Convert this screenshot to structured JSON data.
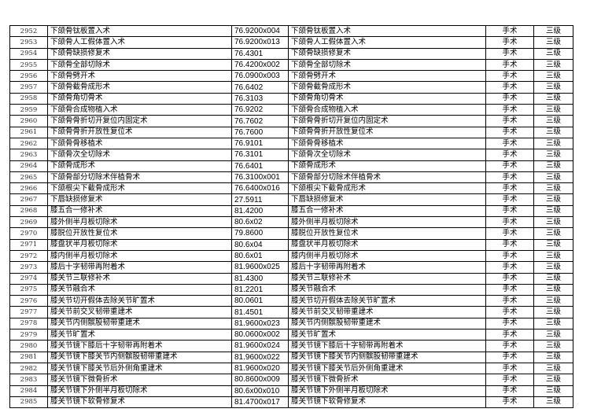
{
  "rows": [
    {
      "no": "2952",
      "name": "下颌骨钛板置入术",
      "code": "76.9200x004",
      "name2": "下颌骨钛板置入术",
      "type": "手术",
      "level": "三级"
    },
    {
      "no": "2953",
      "name": "下颌骨人工假体置入术",
      "code": "76.9200x013",
      "name2": "下颌骨人工假体置入术",
      "type": "手术",
      "level": "三级"
    },
    {
      "no": "2954",
      "name": "下颌骨缺损修复术",
      "code": "76.4301",
      "name2": "下颌骨缺损修复术",
      "type": "手术",
      "level": "三级"
    },
    {
      "no": "2955",
      "name": "下颌骨全部切除术",
      "code": "76.4200x002",
      "name2": "下颌骨全部切除术",
      "type": "手术",
      "level": "三级"
    },
    {
      "no": "2956",
      "name": "下颌骨劈开术",
      "code": "76.0900x003",
      "name2": "下颌骨劈开术",
      "type": "手术",
      "level": "三级"
    },
    {
      "no": "2957",
      "name": "下颌骨截骨成形术",
      "code": "76.6402",
      "name2": "下颌骨截骨成形术",
      "type": "手术",
      "level": "三级"
    },
    {
      "no": "2958",
      "name": "下颌骨角切骨术",
      "code": "76.3103",
      "name2": "下颌骨角切骨术",
      "type": "手术",
      "level": "三级"
    },
    {
      "no": "2959",
      "name": "下颌骨合成物植入术",
      "code": "76.9202",
      "name2": "下颌骨合成物植入术",
      "type": "手术",
      "level": "三级"
    },
    {
      "no": "2960",
      "name": "下颌骨骨折切开复位内固定术",
      "code": "76.7602",
      "name2": "下颌骨骨折切开复位内固定术",
      "type": "手术",
      "level": "三级"
    },
    {
      "no": "2961",
      "name": "下颌骨骨折开放性复位术",
      "code": "76.7600",
      "name2": "下颌骨骨折开放性复位术",
      "type": "手术",
      "level": "三级"
    },
    {
      "no": "2962",
      "name": "下颌骨骨移植术",
      "code": "76.9101",
      "name2": "下颌骨骨移植术",
      "type": "手术",
      "level": "三级"
    },
    {
      "no": "2963",
      "name": "下颌骨次全切除术",
      "code": "76.3101",
      "name2": "下颌骨次全切除术",
      "type": "手术",
      "level": "三级"
    },
    {
      "no": "2964",
      "name": "下颌骨成形术",
      "code": "76.6401",
      "name2": "下颌骨成形术",
      "type": "手术",
      "level": "三级"
    },
    {
      "no": "2965",
      "name": "下颌骨部分切除术伴植骨术",
      "code": "76.3100x001",
      "name2": "下颌骨部分切除术伴植骨术",
      "type": "手术",
      "level": "三级"
    },
    {
      "no": "2966",
      "name": "下颌根尖下截骨成形术",
      "code": "76.6400x016",
      "name2": "下颌根尖下截骨成形术",
      "type": "手术",
      "level": "三级"
    },
    {
      "no": "2967",
      "name": "下唇缺损修复术",
      "code": "27.5911",
      "name2": "下唇缺损修复术",
      "type": "手术",
      "level": "三级"
    },
    {
      "no": "2968",
      "name": "膝五合一修补术",
      "code": "81.4200",
      "name2": "膝五合一修补术",
      "type": "手术",
      "level": "三级"
    },
    {
      "no": "2969",
      "name": "膝外侧半月板切除术",
      "code": "80.6x02",
      "name2": "膝外侧半月板切除术",
      "type": "手术",
      "level": "三级"
    },
    {
      "no": "2970",
      "name": "膝脱位开放性复位术",
      "code": "79.8600",
      "name2": "膝脱位开放性复位术",
      "type": "手术",
      "level": "三级"
    },
    {
      "no": "2971",
      "name": "膝盘状半月板切除术",
      "code": "80.6x04",
      "name2": "膝盘状半月板切除术",
      "type": "手术",
      "level": "三级"
    },
    {
      "no": "2972",
      "name": "膝内侧半月板切除术",
      "code": "80.6x01",
      "name2": "膝内侧半月板切除术",
      "type": "手术",
      "level": "三级"
    },
    {
      "no": "2973",
      "name": "膝后十字韧带再附着术",
      "code": "81.9600x025",
      "name2": "膝后十字韧带再附着术",
      "type": "手术",
      "level": "三级"
    },
    {
      "no": "2974",
      "name": "膝关节三联修补术",
      "code": "81.4300",
      "name2": "膝关节三联修补术",
      "type": "手术",
      "level": "三级"
    },
    {
      "no": "2975",
      "name": "膝关节融合术",
      "code": "81.2201",
      "name2": "膝关节融合术",
      "type": "手术",
      "level": "三级"
    },
    {
      "no": "2976",
      "name": "膝关节切开假体去除关节旷置术",
      "code": "80.0601",
      "name2": "膝关节切开假体去除关节旷置术",
      "type": "手术",
      "level": "三级"
    },
    {
      "no": "2977",
      "name": "膝关节前交叉韧带重建术",
      "code": "81.4501",
      "name2": "膝关节前交叉韧带重建术",
      "type": "手术",
      "level": "三级"
    },
    {
      "no": "2978",
      "name": "膝关节内侧髌股韧带重建术",
      "code": "81.9600x023",
      "name2": "膝关节内侧髌股韧带重建术",
      "type": "手术",
      "level": "三级"
    },
    {
      "no": "2979",
      "name": "膝关节旷置术",
      "code": "80.0600x002",
      "name2": "膝关节旷置术",
      "type": "手术",
      "level": "三级"
    },
    {
      "no": "2980",
      "name": "膝关节镜下膝后十字韧带再附着术",
      "code": "81.9600x024",
      "name2": "膝关节镜下膝后十字韧带再附着术",
      "type": "手术",
      "level": "三级"
    },
    {
      "no": "2981",
      "name": "膝关节镜下膝关节内侧髌股韧带重建术",
      "code": "81.9600x022",
      "name2": "膝关节镜下膝关节内侧髌股韧带重建术",
      "type": "手术",
      "level": "三级"
    },
    {
      "no": "2982",
      "name": "膝关节镜下膝关节后外侧角重建术",
      "code": "81.9600x020",
      "name2": "膝关节镜下膝关节后外侧角重建术",
      "type": "手术",
      "level": "三级"
    },
    {
      "no": "2983",
      "name": "膝关节镜下微骨折术",
      "code": "80.8600x009",
      "name2": "膝关节镜下微骨折术",
      "type": "手术",
      "level": "三级"
    },
    {
      "no": "2984",
      "name": "膝关节镜下外侧半月板切除术",
      "code": "80.6x00x010",
      "name2": "膝关节镜下外侧半月板切除术",
      "type": "手术",
      "level": "三级"
    },
    {
      "no": "2985",
      "name": "膝关节镜下软骨修复术",
      "code": "81.4700x017",
      "name2": "膝关节镜下软骨修复术",
      "type": "手术",
      "level": "三级"
    }
  ]
}
